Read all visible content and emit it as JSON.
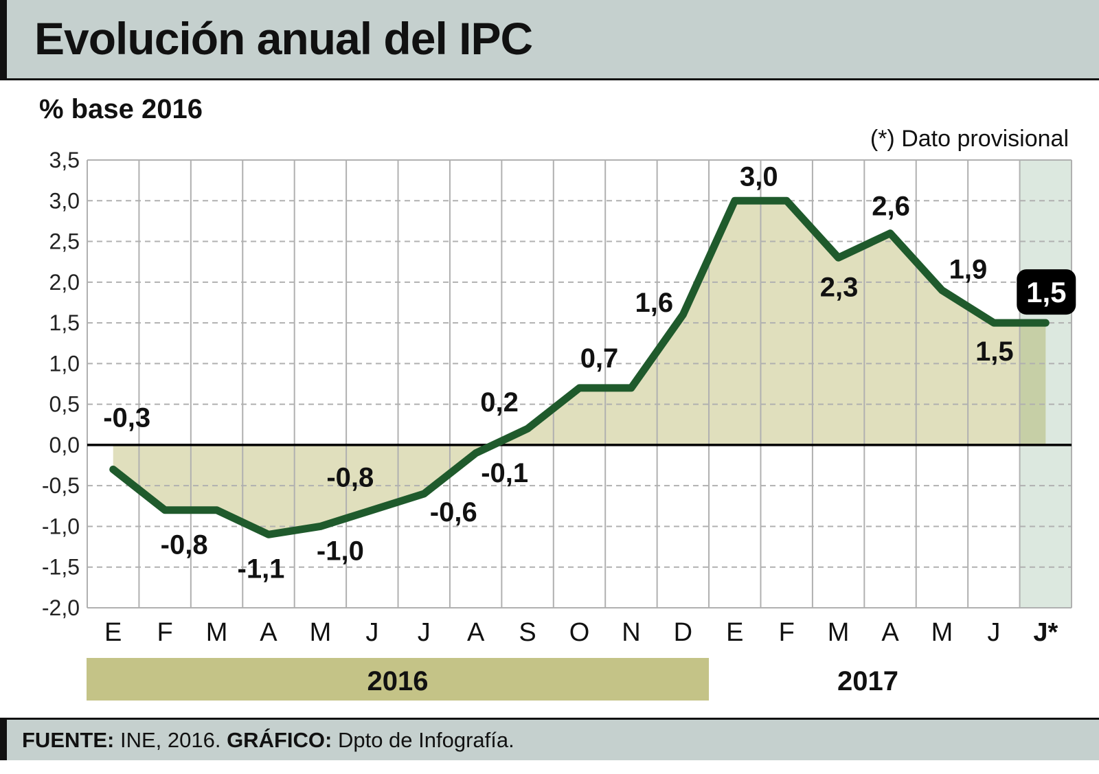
{
  "title": "Evolución anual del IPC",
  "subtitle": "% base 2016",
  "note": "(*) Dato provisional",
  "footer": {
    "source_label": "FUENTE:",
    "source_value": "INE, 2016.",
    "graphic_label": "GRÁFICO:",
    "graphic_value": "Dpto de Infografía."
  },
  "colors": {
    "line": "#1f5a2c",
    "area": "#e0dfbd",
    "area_highlight": "#c6cfa6",
    "provisional_column": "#dce8df",
    "year_2016_band": "#c4c387",
    "grid": "#b0b0b0"
  },
  "chart_data": {
    "type": "area",
    "title": "Evolución anual del IPC",
    "ylabel": "% base 2016",
    "ylim": [
      -2.0,
      3.5
    ],
    "yticks": [
      "3,5",
      "3,0",
      "2,5",
      "2,0",
      "1,5",
      "1,0",
      "0,5",
      "0,0",
      "-0,5",
      "-1,0",
      "-1,5",
      "-2,0"
    ],
    "ytick_values": [
      3.5,
      3.0,
      2.5,
      2.0,
      1.5,
      1.0,
      0.5,
      0.0,
      -0.5,
      -1.0,
      -1.5,
      -2.0
    ],
    "grid": true,
    "categories": [
      "E",
      "F",
      "M",
      "A",
      "M",
      "J",
      "J",
      "A",
      "S",
      "O",
      "N",
      "D",
      "E",
      "F",
      "M",
      "A",
      "M",
      "J",
      "J*"
    ],
    "years": [
      {
        "label": "2016",
        "months": 12,
        "highlighted": true
      },
      {
        "label": "2017",
        "months": 7,
        "highlighted": false
      }
    ],
    "values": [
      -0.3,
      -0.8,
      -0.8,
      -1.1,
      -1.0,
      -0.8,
      -0.6,
      -0.1,
      0.2,
      0.7,
      0.7,
      1.6,
      3.0,
      3.0,
      2.3,
      2.6,
      1.9,
      1.5,
      1.5
    ],
    "data_labels": [
      "-0,3",
      "-0,8",
      null,
      "-1,1",
      "-1,0",
      "-0,8",
      "-0,6",
      "-0,1",
      "0,2",
      "0,7",
      null,
      "1,6",
      "3,0",
      null,
      "2,3",
      "2,6",
      "1,9",
      "1,5",
      "1,5"
    ],
    "provisional_index": 18
  }
}
